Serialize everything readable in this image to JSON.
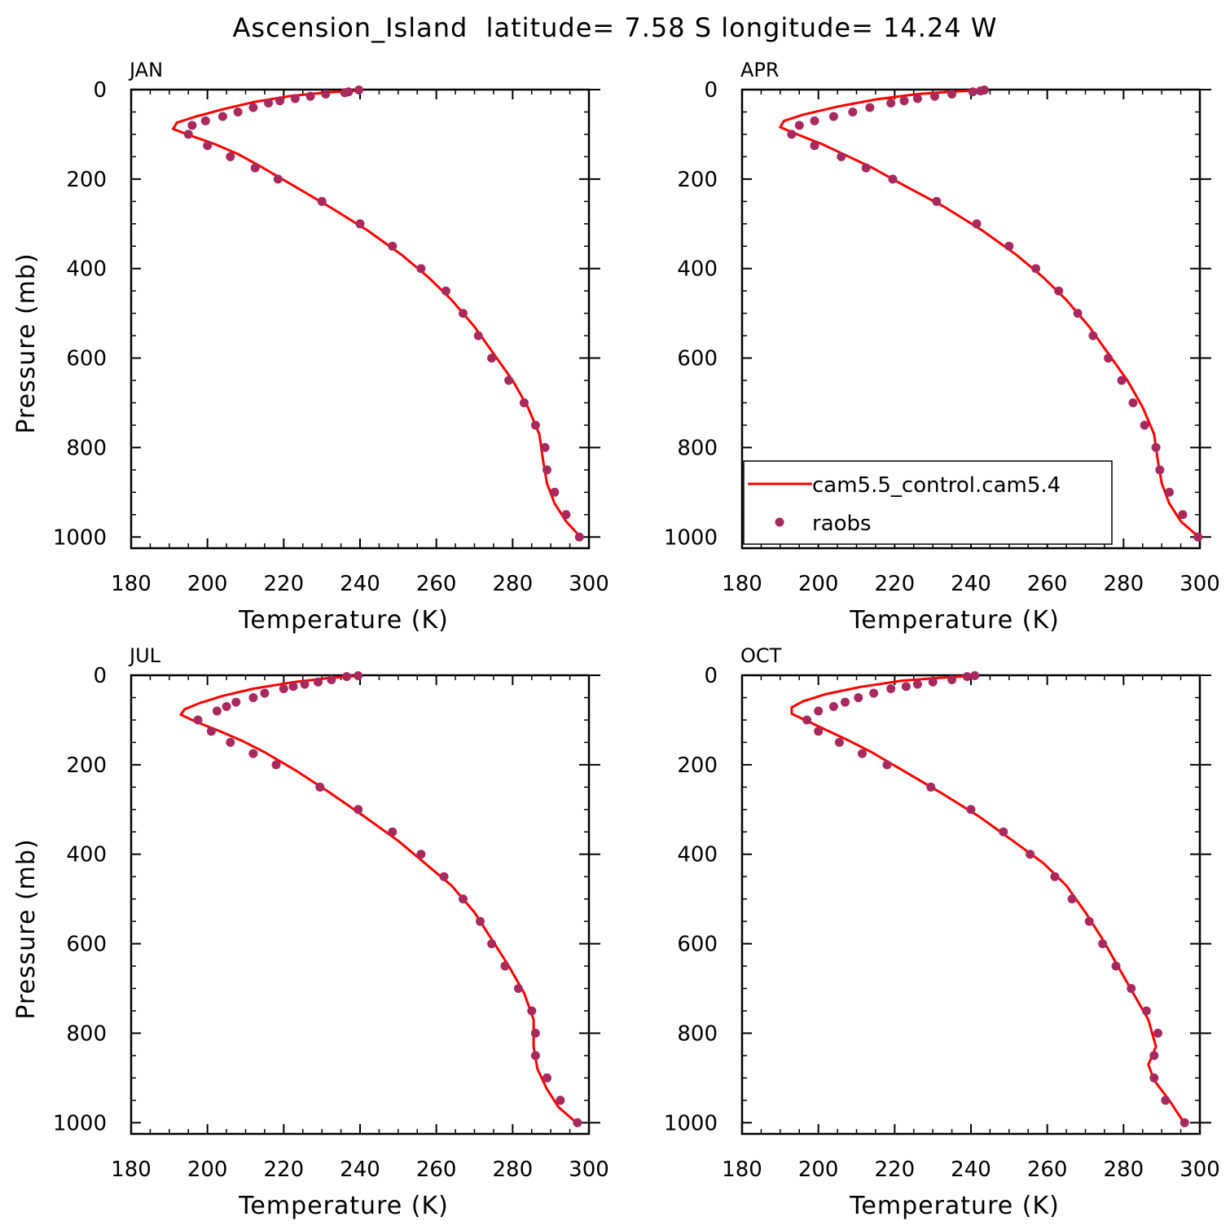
{
  "title": "Ascension_Island  latitude= 7.58 S longitude= 14.24 W",
  "colors": {
    "model": "#ff0000",
    "obs": "#a8295e",
    "axis": "#000000"
  },
  "legend": {
    "model_label": "cam5.5_control.cam5.4",
    "obs_label": "raobs",
    "location": "lower-left of APR panel"
  },
  "chart_data": [
    {
      "type": "line+scatter",
      "panel": "JAN",
      "xlabel": "Temperature (K)",
      "ylabel": "Pressure (mb)",
      "xlim": [
        180,
        300
      ],
      "ylim": [
        1025,
        0
      ],
      "y_inverted": true,
      "xticks": [
        180,
        200,
        220,
        240,
        260,
        280,
        300
      ],
      "yticks": [
        0,
        200,
        400,
        600,
        800,
        1000
      ],
      "series": [
        {
          "name": "cam5.5_control.cam5.4",
          "kind": "line",
          "points": [
            [
              240,
              2
            ],
            [
              232,
              6
            ],
            [
              222,
              14
            ],
            [
              212,
              28
            ],
            [
              204,
              44
            ],
            [
              197,
              60
            ],
            [
              192,
              74
            ],
            [
              191,
              88
            ],
            [
              196,
              104
            ],
            [
              202,
              122
            ],
            [
              208,
              144
            ],
            [
              214,
              172
            ],
            [
              222,
              212
            ],
            [
              232,
              262
            ],
            [
              242,
              315
            ],
            [
              251,
              370
            ],
            [
              258,
              420
            ],
            [
              264,
              470
            ],
            [
              270,
              530
            ],
            [
              275,
              590
            ],
            [
              280,
              650
            ],
            [
              284,
              710
            ],
            [
              287,
              770
            ],
            [
              288,
              830
            ],
            [
              289,
              880
            ],
            [
              291,
              925
            ],
            [
              294,
              965
            ],
            [
              298,
              1002
            ]
          ]
        },
        {
          "name": "raobs",
          "kind": "scatter",
          "points": [
            [
              239.7,
              1
            ],
            [
              237,
              5
            ],
            [
              236,
              7
            ],
            [
              231,
              10
            ],
            [
              227,
              15
            ],
            [
              223,
              20
            ],
            [
              219,
              25
            ],
            [
              216,
              30
            ],
            [
              212,
              40
            ],
            [
              208,
              50
            ],
            [
              204,
              60
            ],
            [
              199.5,
              70
            ],
            [
              196,
              80
            ],
            [
              195,
              100
            ],
            [
              200,
              125
            ],
            [
              206,
              150
            ],
            [
              212.5,
              175
            ],
            [
              218.5,
              200
            ],
            [
              230,
              250
            ],
            [
              240,
              300
            ],
            [
              248.5,
              350
            ],
            [
              256,
              400
            ],
            [
              262.5,
              450
            ],
            [
              267,
              500
            ],
            [
              271,
              550
            ],
            [
              274.5,
              600
            ],
            [
              279,
              650
            ],
            [
              283,
              700
            ],
            [
              286,
              750
            ],
            [
              288.5,
              800
            ],
            [
              289,
              850
            ],
            [
              291,
              900
            ],
            [
              294,
              950
            ],
            [
              297.5,
              1000
            ]
          ]
        }
      ]
    },
    {
      "type": "line+scatter",
      "panel": "APR",
      "xlabel": "Temperature (K)",
      "ylabel": "",
      "xlim": [
        180,
        300
      ],
      "ylim": [
        1025,
        0
      ],
      "y_inverted": true,
      "xticks": [
        180,
        200,
        220,
        240,
        260,
        280,
        300
      ],
      "yticks": [
        0,
        200,
        400,
        600,
        800,
        1000
      ],
      "series": [
        {
          "name": "cam5.5_control.cam5.4",
          "kind": "line",
          "points": [
            [
              244,
              1
            ],
            [
              236,
              4
            ],
            [
              226,
              10
            ],
            [
              215,
              22
            ],
            [
              205,
              38
            ],
            [
              196,
              56
            ],
            [
              191,
              70
            ],
            [
              190,
              84
            ],
            [
              195,
              102
            ],
            [
              201,
              122
            ],
            [
              207,
              146
            ],
            [
              214,
              174
            ],
            [
              222,
              212
            ],
            [
              233,
              262
            ],
            [
              243,
              315
            ],
            [
              252,
              370
            ],
            [
              259,
              420
            ],
            [
              265,
              470
            ],
            [
              271,
              530
            ],
            [
              276,
              590
            ],
            [
              281,
              650
            ],
            [
              285,
              710
            ],
            [
              288,
              770
            ],
            [
              289,
              830
            ],
            [
              290,
              880
            ],
            [
              292,
              925
            ],
            [
              295,
              965
            ],
            [
              300,
              1002
            ]
          ]
        },
        {
          "name": "raobs",
          "kind": "scatter",
          "points": [
            [
              243.5,
              1
            ],
            [
              242.5,
              3
            ],
            [
              240.5,
              5
            ],
            [
              235,
              10
            ],
            [
              230.5,
              15
            ],
            [
              226,
              20
            ],
            [
              222.5,
              25
            ],
            [
              219,
              30
            ],
            [
              213.5,
              40
            ],
            [
              209,
              50
            ],
            [
              204,
              60
            ],
            [
              199,
              70
            ],
            [
              195,
              80
            ],
            [
              193,
              100
            ],
            [
              199,
              125
            ],
            [
              206,
              150
            ],
            [
              212.5,
              175
            ],
            [
              219.5,
              200
            ],
            [
              231,
              250
            ],
            [
              241.5,
              300
            ],
            [
              250,
              350
            ],
            [
              257,
              400
            ],
            [
              263,
              450
            ],
            [
              268,
              500
            ],
            [
              272,
              550
            ],
            [
              276,
              600
            ],
            [
              279.5,
              650
            ],
            [
              282.5,
              700
            ],
            [
              285.5,
              750
            ],
            [
              288.5,
              800
            ],
            [
              289.5,
              850
            ],
            [
              292,
              900
            ],
            [
              295.5,
              950
            ],
            [
              299.5,
              1000
            ]
          ]
        }
      ]
    },
    {
      "type": "line+scatter",
      "panel": "JUL",
      "xlabel": "Temperature (K)",
      "ylabel": "Pressure (mb)",
      "xlim": [
        180,
        300
      ],
      "ylim": [
        1025,
        0
      ],
      "y_inverted": true,
      "xticks": [
        180,
        200,
        220,
        240,
        260,
        280,
        300
      ],
      "yticks": [
        0,
        200,
        400,
        600,
        800,
        1000
      ],
      "series": [
        {
          "name": "cam5.5_control.cam5.4",
          "kind": "line",
          "points": [
            [
              240,
              1
            ],
            [
              232,
              6
            ],
            [
              222,
              16
            ],
            [
              212,
              30
            ],
            [
              204,
              46
            ],
            [
              198,
              62
            ],
            [
              194,
              76
            ],
            [
              193,
              88
            ],
            [
              197,
              104
            ],
            [
              203,
              124
            ],
            [
              209,
              146
            ],
            [
              215,
              172
            ],
            [
              223,
              212
            ],
            [
              232,
              262
            ],
            [
              241,
              315
            ],
            [
              250,
              370
            ],
            [
              257,
              420
            ],
            [
              264,
              470
            ],
            [
              270,
              530
            ],
            [
              274.5,
              590
            ],
            [
              279,
              650
            ],
            [
              283,
              710
            ],
            [
              285.5,
              770
            ],
            [
              285.5,
              830
            ],
            [
              286.5,
              880
            ],
            [
              289,
              925
            ],
            [
              292,
              965
            ],
            [
              297,
              1002
            ]
          ]
        },
        {
          "name": "raobs",
          "kind": "scatter",
          "points": [
            [
              239.5,
              1
            ],
            [
              236.5,
              3
            ],
            [
              232.5,
              10
            ],
            [
              229,
              15
            ],
            [
              225.5,
              20
            ],
            [
              222.5,
              25
            ],
            [
              220,
              30
            ],
            [
              215,
              40
            ],
            [
              212,
              50
            ],
            [
              207.5,
              60
            ],
            [
              205,
              70
            ],
            [
              202.5,
              80
            ],
            [
              197.5,
              100
            ],
            [
              201,
              125
            ],
            [
              206,
              150
            ],
            [
              212,
              175
            ],
            [
              218,
              200
            ],
            [
              229.5,
              250
            ],
            [
              239.5,
              300
            ],
            [
              248.5,
              350
            ],
            [
              256,
              400
            ],
            [
              262,
              450
            ],
            [
              267,
              500
            ],
            [
              271.5,
              550
            ],
            [
              274.5,
              600
            ],
            [
              278,
              650
            ],
            [
              281.5,
              700
            ],
            [
              285,
              750
            ],
            [
              286,
              800
            ],
            [
              286,
              850
            ],
            [
              289,
              900
            ],
            [
              292.5,
              950
            ],
            [
              297,
              1000
            ]
          ]
        }
      ]
    },
    {
      "type": "line+scatter",
      "panel": "OCT",
      "xlabel": "Temperature (K)",
      "ylabel": "",
      "xlim": [
        180,
        300
      ],
      "ylim": [
        1025,
        0
      ],
      "y_inverted": true,
      "xticks": [
        180,
        200,
        220,
        240,
        260,
        280,
        300
      ],
      "yticks": [
        0,
        200,
        400,
        600,
        800,
        1000
      ],
      "series": [
        {
          "name": "cam5.5_control.cam5.4",
          "kind": "line",
          "points": [
            [
              241,
              1
            ],
            [
              233,
              5
            ],
            [
              222,
              12
            ],
            [
              211,
              26
            ],
            [
              202,
              42
            ],
            [
              196,
              58
            ],
            [
              193,
              72
            ],
            [
              193,
              86
            ],
            [
              197,
              102
            ],
            [
              202,
              122
            ],
            [
              208,
              146
            ],
            [
              214,
              172
            ],
            [
              222,
              212
            ],
            [
              232,
              262
            ],
            [
              242,
              315
            ],
            [
              251,
              370
            ],
            [
              259,
              420
            ],
            [
              265,
              470
            ],
            [
              270,
              530
            ],
            [
              274.5,
              590
            ],
            [
              278.5,
              650
            ],
            [
              282.5,
              710
            ],
            [
              286.5,
              770
            ],
            [
              288.5,
              830
            ],
            [
              286.5,
              870
            ],
            [
              288,
              905
            ],
            [
              292,
              950
            ],
            [
              296,
              1002
            ]
          ]
        },
        {
          "name": "raobs",
          "kind": "scatter",
          "points": [
            [
              241,
              1
            ],
            [
              239,
              3
            ],
            [
              235,
              10
            ],
            [
              230,
              15
            ],
            [
              226,
              20
            ],
            [
              223,
              25
            ],
            [
              219,
              30
            ],
            [
              214.5,
              40
            ],
            [
              210.5,
              50
            ],
            [
              207,
              60
            ],
            [
              204,
              70
            ],
            [
              200,
              80
            ],
            [
              197,
              100
            ],
            [
              200,
              125
            ],
            [
              205.5,
              150
            ],
            [
              211.5,
              175
            ],
            [
              218,
              200
            ],
            [
              229.5,
              250
            ],
            [
              240,
              300
            ],
            [
              248.5,
              350
            ],
            [
              255.5,
              400
            ],
            [
              262,
              450
            ],
            [
              266.5,
              500
            ],
            [
              271,
              550
            ],
            [
              274.5,
              600
            ],
            [
              278,
              650
            ],
            [
              282,
              700
            ],
            [
              286,
              750
            ],
            [
              289,
              800
            ],
            [
              288,
              850
            ],
            [
              288,
              900
            ],
            [
              291,
              950
            ],
            [
              296,
              1000
            ]
          ]
        }
      ]
    }
  ]
}
